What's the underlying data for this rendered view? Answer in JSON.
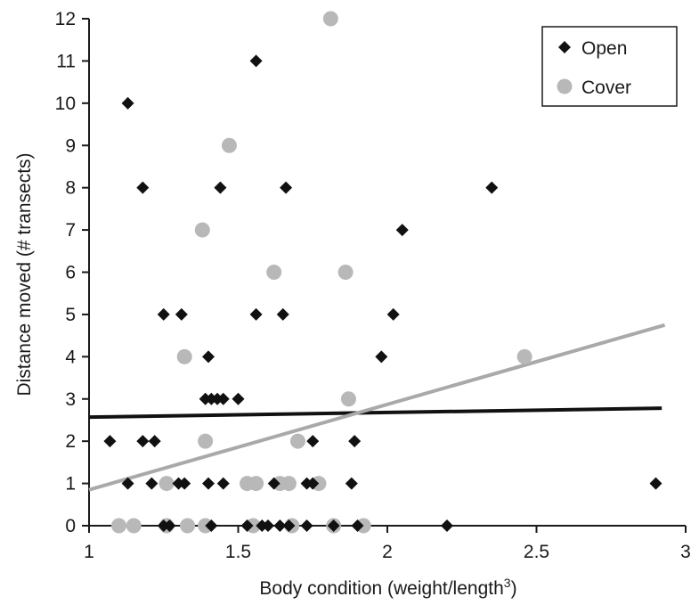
{
  "chart_data": {
    "type": "scatter",
    "title": "",
    "xlabel": "Body condition (weight/length",
    "xlabel_superscript": "3",
    "xlabel_suffix": ")",
    "ylabel": "Distance moved (# transects)",
    "xlim": [
      1,
      3
    ],
    "ylim": [
      0,
      12
    ],
    "xticks": [
      "1",
      "1.5",
      "2",
      "2.5",
      "3"
    ],
    "yticks": [
      "0",
      "1",
      "2",
      "3",
      "4",
      "5",
      "6",
      "7",
      "8",
      "9",
      "10",
      "11",
      "12"
    ],
    "grid": false,
    "legend_position": "top-right",
    "series": [
      {
        "name": "Open",
        "marker": "diamond",
        "color": "#111111",
        "points": [
          [
            1.07,
            2
          ],
          [
            1.13,
            10
          ],
          [
            1.13,
            1
          ],
          [
            1.18,
            8
          ],
          [
            1.18,
            2
          ],
          [
            1.22,
            2
          ],
          [
            1.21,
            1
          ],
          [
            1.25,
            5
          ],
          [
            1.25,
            0
          ],
          [
            1.31,
            5
          ],
          [
            1.3,
            1
          ],
          [
            1.32,
            1
          ],
          [
            1.27,
            0
          ],
          [
            1.39,
            3
          ],
          [
            1.4,
            4
          ],
          [
            1.41,
            3
          ],
          [
            1.43,
            3
          ],
          [
            1.45,
            3
          ],
          [
            1.44,
            8
          ],
          [
            1.4,
            1
          ],
          [
            1.45,
            1
          ],
          [
            1.41,
            0
          ],
          [
            1.5,
            3
          ],
          [
            1.56,
            11
          ],
          [
            1.56,
            5
          ],
          [
            1.53,
            0
          ],
          [
            1.58,
            0
          ],
          [
            1.6,
            0
          ],
          [
            1.65,
            5
          ],
          [
            1.66,
            8
          ],
          [
            1.62,
            1
          ],
          [
            1.64,
            0
          ],
          [
            1.67,
            0
          ],
          [
            1.73,
            1
          ],
          [
            1.75,
            1
          ],
          [
            1.75,
            2
          ],
          [
            1.73,
            0
          ],
          [
            1.82,
            0
          ],
          [
            1.88,
            1
          ],
          [
            1.89,
            2
          ],
          [
            1.9,
            0
          ],
          [
            1.98,
            4
          ],
          [
            2.02,
            5
          ],
          [
            2.05,
            7
          ],
          [
            2.2,
            0
          ],
          [
            2.35,
            8
          ],
          [
            2.9,
            1
          ]
        ],
        "trend": [
          [
            1.0,
            2.57
          ],
          [
            2.92,
            2.78
          ]
        ]
      },
      {
        "name": "Cover",
        "marker": "circle",
        "color": "#b8b8b8",
        "points": [
          [
            1.47,
            9
          ],
          [
            1.38,
            7
          ],
          [
            1.81,
            12
          ],
          [
            1.62,
            6
          ],
          [
            1.86,
            6
          ],
          [
            1.32,
            4
          ],
          [
            2.46,
            4
          ],
          [
            1.87,
            3
          ],
          [
            1.39,
            2
          ],
          [
            1.7,
            2
          ],
          [
            1.26,
            1
          ],
          [
            1.53,
            1
          ],
          [
            1.56,
            1
          ],
          [
            1.64,
            1
          ],
          [
            1.67,
            1
          ],
          [
            1.77,
            1
          ],
          [
            1.1,
            0
          ],
          [
            1.15,
            0
          ],
          [
            1.26,
            0
          ],
          [
            1.33,
            0
          ],
          [
            1.39,
            0
          ],
          [
            1.55,
            0
          ],
          [
            1.68,
            0
          ],
          [
            1.82,
            0
          ],
          [
            1.92,
            0
          ]
        ],
        "trend": [
          [
            1.0,
            0.85
          ],
          [
            2.93,
            4.75
          ]
        ]
      }
    ]
  }
}
